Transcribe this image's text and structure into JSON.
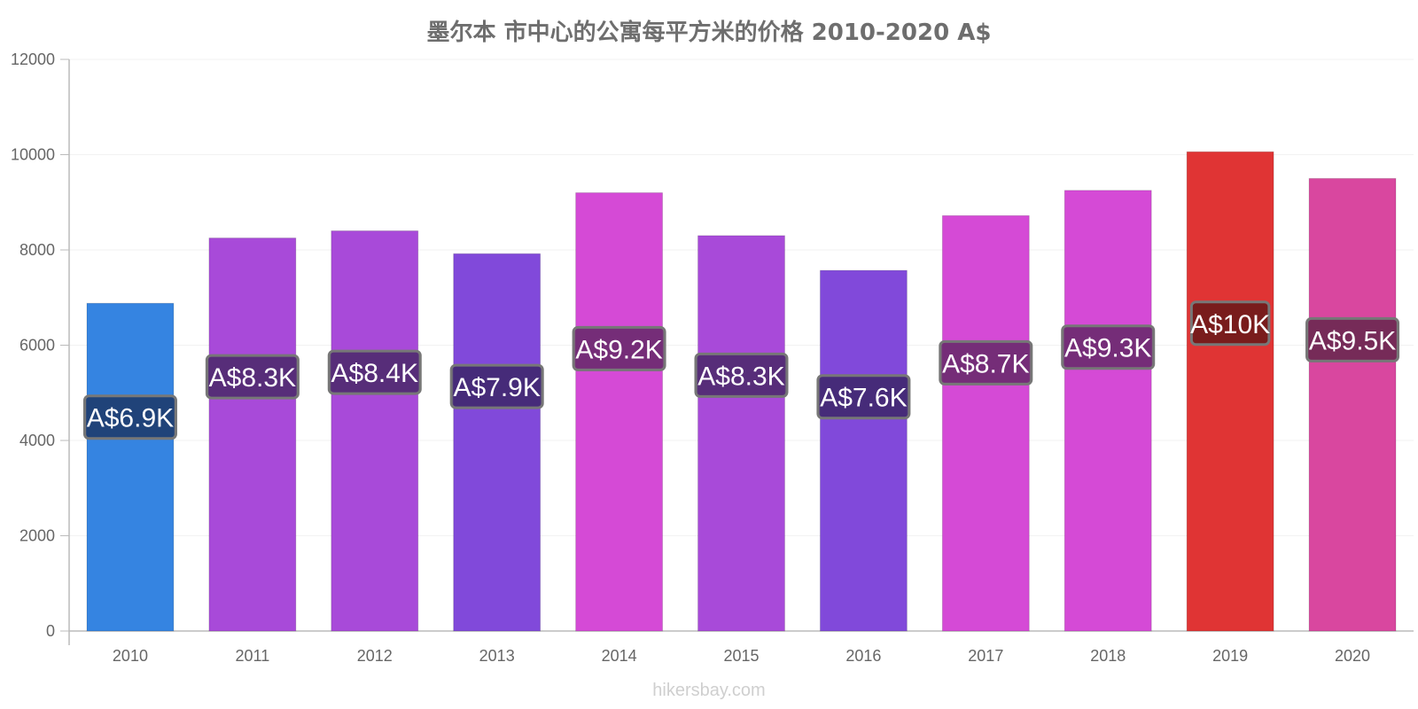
{
  "chart_data": {
    "type": "bar",
    "title": "墨尔本 市中心的公寓每平方米的价格 2010-2020 A$",
    "categories": [
      "2010",
      "2011",
      "2012",
      "2013",
      "2014",
      "2015",
      "2016",
      "2017",
      "2018",
      "2019",
      "2020"
    ],
    "values": [
      6880,
      8250,
      8400,
      7920,
      9200,
      8300,
      7570,
      8720,
      9250,
      10060,
      9500
    ],
    "value_labels": [
      "A$6.9K",
      "A$8.3K",
      "A$8.4K",
      "A$7.9K",
      "A$9.2K",
      "A$8.3K",
      "A$7.6K",
      "A$8.7K",
      "A$9.3K",
      "A$10K",
      "A$9.5K"
    ],
    "bar_colors": [
      "#3584e1",
      "#a84ad9",
      "#a84ad9",
      "#8149da",
      "#d54ad6",
      "#a84ad9",
      "#8149da",
      "#d54ad6",
      "#d54ad6",
      "#e03434",
      "#d9479f"
    ],
    "label_bg_colors": [
      "#1e3c6e",
      "#4e2a6e",
      "#4e2a6e",
      "#3f286e",
      "#6a2a6e",
      "#4e2a6e",
      "#3f286e",
      "#6a2a6e",
      "#6a2a6e",
      "#6e1a1a",
      "#6a2850"
    ],
    "ylim": [
      0,
      12000
    ],
    "yticks": [
      0,
      2000,
      4000,
      6000,
      8000,
      10000,
      12000
    ],
    "grid": true,
    "legend": "none"
  },
  "watermark": "hikersbay.com"
}
